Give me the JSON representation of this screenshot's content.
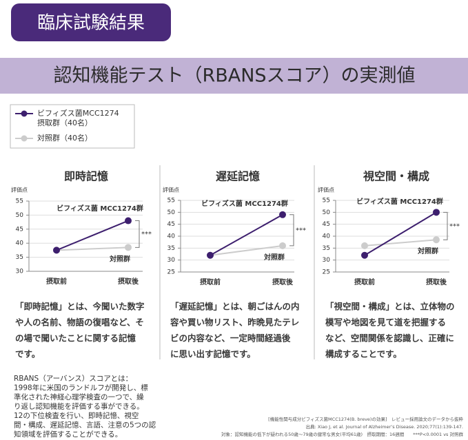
{
  "header": {
    "badge": "臨床試験結果",
    "title": "認知機能テスト（RBANSスコア）の実測値"
  },
  "legend": {
    "items": [
      {
        "lines": [
          "ビフィズス菌MCC1274",
          "摂取群（40名）"
        ],
        "color": "#3d1f6e"
      },
      {
        "lines": [
          "対照群（40名）"
        ],
        "color": "#cccccc"
      }
    ]
  },
  "chart_data": [
    {
      "type": "line",
      "title": "即時記憶",
      "y_label": "評価点",
      "categories": [
        "摂取前",
        "摂取後"
      ],
      "series": [
        {
          "name": "ビフィズス菌 MCC1274群",
          "color": "#3d1f6e",
          "values": [
            37.5,
            48
          ]
        },
        {
          "name": "対照群",
          "color": "#cccccc",
          "values": [
            37.5,
            38.5
          ]
        }
      ],
      "ylim": [
        30,
        55
      ],
      "yticks": [
        30,
        35,
        40,
        45,
        50,
        55
      ],
      "grid": true,
      "annotations": [
        "***"
      ]
    },
    {
      "type": "line",
      "title": "遅延記憶",
      "y_label": "評価点",
      "categories": [
        "摂取前",
        "摂取後"
      ],
      "series": [
        {
          "name": "ビフィズス菌 MCC1274群",
          "color": "#3d1f6e",
          "values": [
            32,
            49
          ]
        },
        {
          "name": "対照群",
          "color": "#cccccc",
          "values": [
            32,
            36
          ]
        }
      ],
      "ylim": [
        25,
        55
      ],
      "yticks": [
        25,
        30,
        35,
        40,
        45,
        50,
        55
      ],
      "grid": true,
      "annotations": [
        "***"
      ]
    },
    {
      "type": "line",
      "title": "視空間・構成",
      "y_label": "評価点",
      "categories": [
        "摂取前",
        "摂取後"
      ],
      "series": [
        {
          "name": "ビフィズス菌 MCC1274群",
          "color": "#3d1f6e",
          "values": [
            32,
            50
          ]
        },
        {
          "name": "対照群",
          "color": "#cccccc",
          "values": [
            36,
            38.5
          ]
        }
      ],
      "ylim": [
        25,
        55
      ],
      "yticks": [
        25,
        30,
        35,
        40,
        45,
        50,
        55
      ],
      "grid": true,
      "annotations": [
        "***"
      ]
    }
  ],
  "descriptions": [
    [
      "「即時記憶」とは、今聞いた数字",
      "や人の名前、物語の復唱など、そ",
      "の場で聞いたことに関する記憶",
      "です。"
    ],
    [
      "「遅延記憶」とは、朝ごはんの内",
      "容や買い物リスト、昨晩見たテレ",
      "ビの内容など、一定時間経過後",
      "に思い出す記憶です。"
    ],
    [
      "「視空間・構成」とは、立体物の",
      "模写や地図を見て道を把握する",
      "など、空間関係を認識し、正確に",
      "構成することです。"
    ]
  ],
  "note": [
    "RBANS（アーバンス）スコアとは：",
    "1998年に米国のランドルフが開発し、標",
    "準化された神経心理学検査の一つで、繰",
    "り返し認知機能を評価する事ができる。",
    "12の下位検査を行い、即時記憶、視空",
    "間・構成、遅延記憶、言語、注意の5つの認",
    "知領域を評価することができる。"
  ],
  "references": [
    "[機能性関与成分ビフィズス菌MCC1274(B. breve)の効果]　レビュー採用論文のデータから抜粋",
    "出典: Xiao J, et al. Journal of Alzheimer’s Disease. 2020;77(1):139-147.",
    "対象：認知機能の低下が疑われる50歳〜79歳の健常な男女(平均61歳)　摂取期間：16週間　　***P<0.0001 vs 対照群"
  ]
}
